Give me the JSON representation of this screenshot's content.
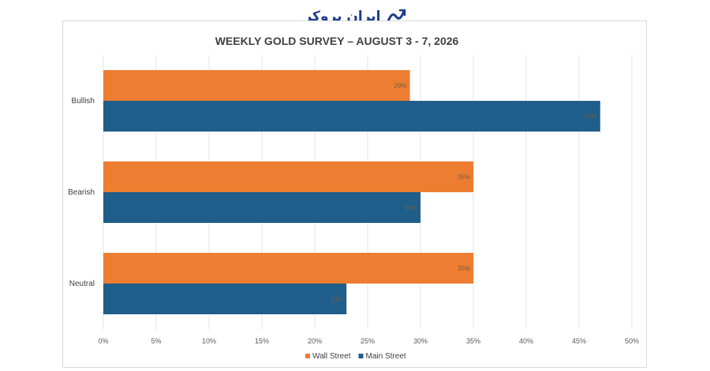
{
  "brand": {
    "name": "ایران بروکر",
    "icon": "chart-trend-icon",
    "color": "#1f3c8c"
  },
  "chart_data": {
    "type": "bar",
    "orientation": "horizontal",
    "title": "WEEKLY GOLD SURVEY – AUGUST 3 - 7, 2026",
    "categories": [
      "Bullish",
      "Bearish",
      "Neutral"
    ],
    "series": [
      {
        "name": "Wall Street",
        "color": "#ed7d31",
        "values": [
          29,
          35,
          35
        ],
        "labels": [
          "29%",
          "35%",
          "35%"
        ]
      },
      {
        "name": "Main Street",
        "color": "#1f5e8a",
        "values": [
          47,
          30,
          23
        ],
        "labels": [
          "47%",
          "30%",
          "23%"
        ]
      }
    ],
    "xlim": [
      0,
      50
    ],
    "xticks": [
      "0%",
      "5%",
      "10%",
      "15%",
      "20%",
      "25%",
      "30%",
      "35%",
      "40%",
      "45%",
      "50%"
    ],
    "grid": true,
    "legend": "bottom"
  }
}
